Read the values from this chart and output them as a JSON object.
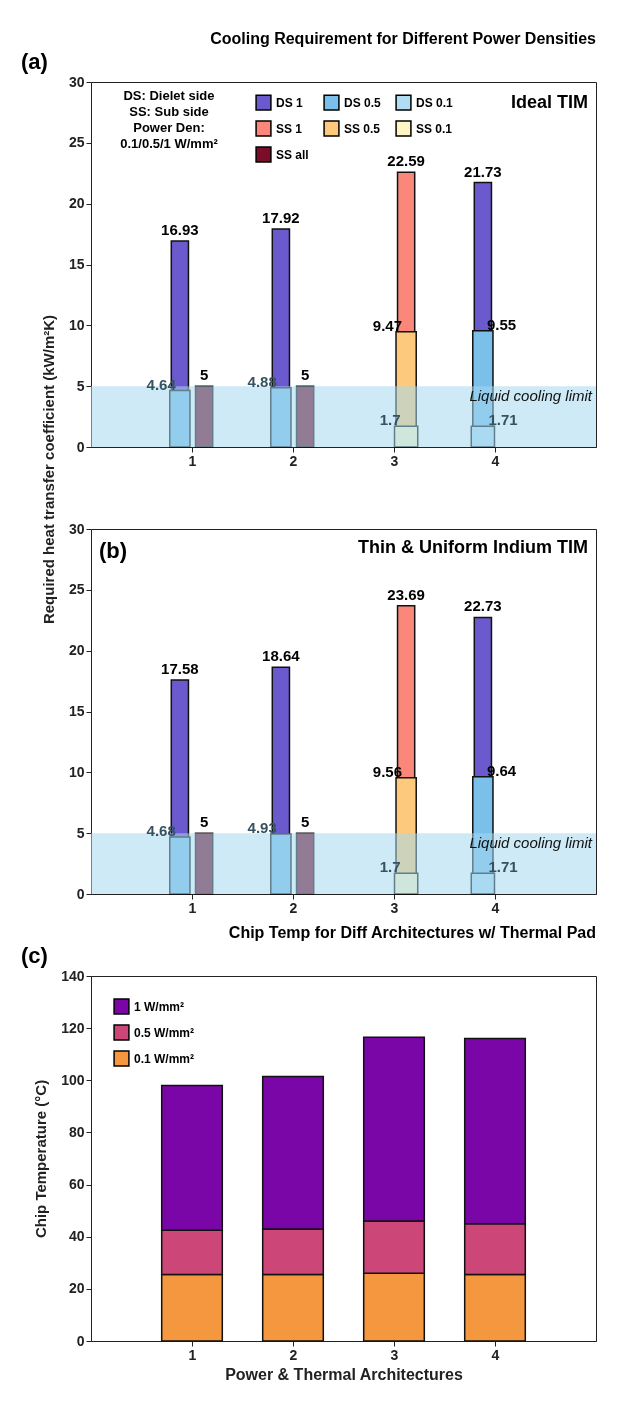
{
  "chart_data": [
    {
      "type": "bar",
      "title": "Cooling Requirement for Different Power Densities",
      "subtitle": "Ideal TIM",
      "ylabel": "Required heat transfer coefficient (kW/m²K)",
      "annotations": [
        "(a)",
        "DS: Dielet side",
        "SS: Sub side",
        "Power Den:",
        "0.1/0.5/1 W/mm²"
      ],
      "categories": [
        "1",
        "2",
        "3",
        "4"
      ],
      "series": [
        {
          "name": "DS 1",
          "color": "#6a5acd",
          "values": [
            16.93,
            17.92,
            null,
            21.73
          ]
        },
        {
          "name": "DS 0.5",
          "color": "#7bbfeb",
          "values": [
            4.64,
            4.88,
            null,
            9.55
          ]
        },
        {
          "name": "DS 0.1",
          "color": "#b0dcf4",
          "values": [
            null,
            null,
            null,
            1.71
          ]
        },
        {
          "name": "SS 1",
          "color": "#fa877a",
          "values": [
            null,
            null,
            22.59,
            null
          ]
        },
        {
          "name": "SS 0.5",
          "color": "#fdc97c",
          "values": [
            null,
            null,
            9.47,
            null
          ]
        },
        {
          "name": "SS 0.1",
          "color": "#fff5c4",
          "values": [
            null,
            null,
            1.7,
            null
          ]
        },
        {
          "name": "SS all",
          "color": "#7b0d28",
          "values": [
            5,
            5,
            null,
            null
          ]
        }
      ],
      "ylim": [
        0,
        30
      ],
      "yticks": [
        0,
        5,
        10,
        15,
        20,
        25,
        30
      ],
      "data_labels": true,
      "legend": "top",
      "bands": [
        {
          "axis": "y",
          "from": 0,
          "to": 5,
          "label": "Liquid cooling limit",
          "color": "#a6d8ef"
        }
      ]
    },
    {
      "type": "bar",
      "subtitle": "Thin & Uniform Indium TIM",
      "annotations": [
        "(b)"
      ],
      "categories": [
        "1",
        "2",
        "3",
        "4"
      ],
      "series": [
        {
          "color": "#6a5acd",
          "values": [
            17.58,
            18.64,
            null,
            22.73
          ]
        },
        {
          "color": "#7bbfeb",
          "values": [
            4.68,
            4.93,
            null,
            9.64
          ]
        },
        {
          "color": "#b0dcf4",
          "values": [
            null,
            null,
            null,
            1.71
          ]
        },
        {
          "color": "#fa877a",
          "values": [
            null,
            null,
            23.69,
            null
          ]
        },
        {
          "color": "#fdc97c",
          "values": [
            null,
            null,
            9.56,
            null
          ]
        },
        {
          "color": "#fff5c4",
          "values": [
            null,
            null,
            1.7,
            null
          ]
        },
        {
          "color": "#7b0d28",
          "values": [
            5,
            5,
            null,
            null
          ]
        }
      ],
      "ylim": [
        0,
        30
      ],
      "yticks": [
        0,
        5,
        10,
        15,
        20,
        25,
        30
      ],
      "data_labels": true,
      "bands": [
        {
          "axis": "y",
          "from": 0,
          "to": 5,
          "label": "Liquid cooling limit",
          "color": "#a6d8ef"
        }
      ]
    },
    {
      "type": "bar",
      "title": "Chip Temp for Diff Architectures w/ Thermal Pad",
      "xlabel": "Power & Thermal Architectures",
      "ylabel": "Chip Temperature (°C)",
      "annotations": [
        "(c)"
      ],
      "categories": [
        "1",
        "2",
        "3",
        "4"
      ],
      "stacked": true,
      "series": [
        {
          "name": "0.1 W/mm²",
          "color": "#f5973f",
          "values": [
            25.5,
            25.5,
            26,
            25.5
          ]
        },
        {
          "name": "0.5 W/mm²",
          "color": "#cc4677",
          "values": [
            17,
            17.5,
            20,
            19.5
          ]
        },
        {
          "name": "1 W/mm²",
          "color": "#7b06a8",
          "values": [
            55.5,
            58.5,
            70.5,
            71
          ]
        }
      ],
      "ylim": [
        0,
        140
      ],
      "yticks": [
        0,
        20,
        40,
        60,
        80,
        100,
        120,
        140
      ],
      "legend": "top left"
    }
  ]
}
